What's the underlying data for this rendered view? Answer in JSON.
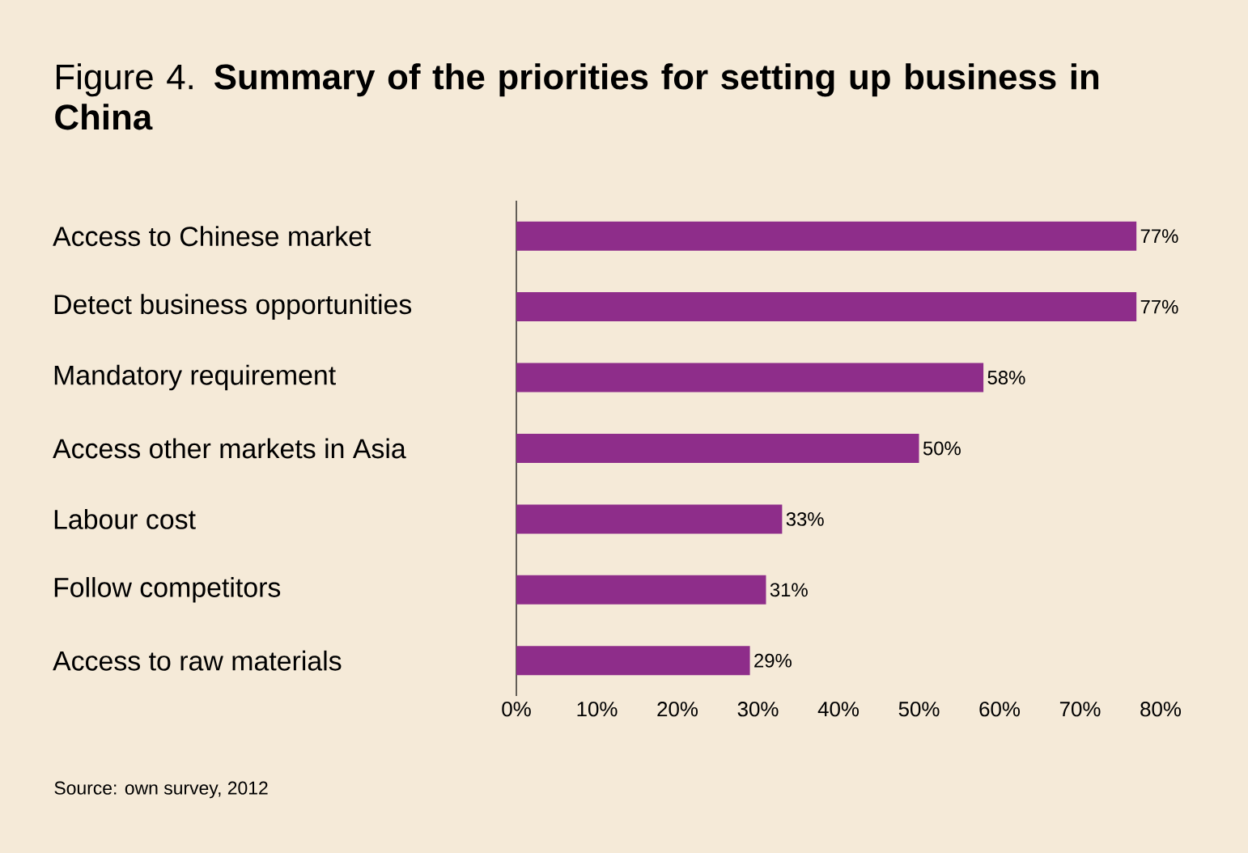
{
  "chart_data": {
    "type": "bar",
    "orientation": "horizontal",
    "title": "Figure 4. **Summary of the priorities for setting up business in China**",
    "categories": [
      "Access to Chinese market",
      "Detect business opportunities",
      "Mandatory requirement",
      "Access other markets in Asia",
      "Labour cost",
      "Follow competitors",
      "Access to raw materials"
    ],
    "values": [
      77,
      77,
      58,
      50,
      33,
      31,
      29
    ],
    "value_labels": [
      "77%",
      "77%",
      "58%",
      "50%",
      "33%",
      "31%",
      "29%"
    ],
    "color": "#8e2d8a",
    "xlim": [
      0,
      80
    ],
    "xticks": [
      {
        "value": 0,
        "label": "0%"
      },
      {
        "value": 10,
        "label": "10%"
      },
      {
        "value": 20,
        "label": "20%"
      },
      {
        "value": 30,
        "label": "30%"
      },
      {
        "value": 40,
        "label": "40%"
      },
      {
        "value": 50,
        "label": "50%"
      },
      {
        "value": 60,
        "label": "60%"
      },
      {
        "value": 70,
        "label": "70%"
      },
      {
        "value": 80,
        "label": "80%"
      }
    ],
    "annotations": [
      "Source: own survey, 2012"
    ]
  }
}
